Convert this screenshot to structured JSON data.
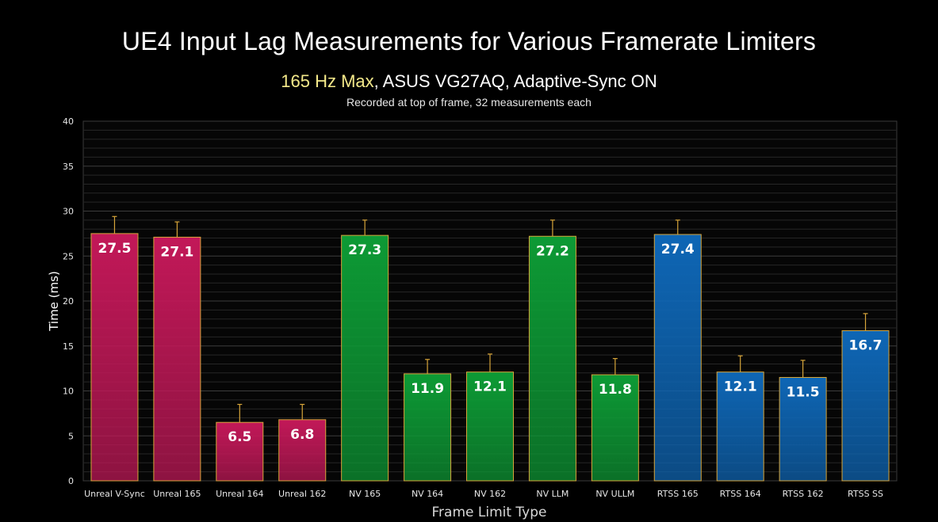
{
  "chart_data": {
    "type": "bar",
    "title": "UE4 Input Lag Measurements for Various Framerate Limiters",
    "subtitle_highlight": "165 Hz Max",
    "subtitle_rest": ", ASUS VG27AQ, Adaptive-Sync ON",
    "note": "Recorded at top of frame, 32 measurements each",
    "xlabel": "Frame Limit Type",
    "ylabel": "Time (ms)",
    "ylim": [
      0,
      40
    ],
    "yticks": [
      0,
      5,
      10,
      15,
      20,
      25,
      30,
      35,
      40
    ],
    "grid": true,
    "categories": [
      "Unreal V-Sync",
      "Unreal 165",
      "Unreal 164",
      "Unreal 162",
      "NV 165",
      "NV 164",
      "NV 162",
      "NV LLM",
      "NV ULLM",
      "RTSS 165",
      "RTSS 164",
      "RTSS 162",
      "RTSS SS"
    ],
    "values": [
      27.5,
      27.1,
      6.5,
      6.8,
      27.3,
      11.9,
      12.1,
      27.2,
      11.8,
      27.4,
      12.1,
      11.5,
      16.7
    ],
    "errors": [
      1.9,
      1.7,
      2.0,
      1.7,
      1.7,
      1.6,
      2.0,
      1.8,
      1.8,
      1.6,
      1.8,
      1.9,
      1.9
    ],
    "groups": [
      {
        "name": "Unreal",
        "color": "#c21858",
        "count": 4
      },
      {
        "name": "NV",
        "color": "#0d9a35",
        "count": 5
      },
      {
        "name": "RTSS",
        "color": "#0e66b5",
        "count": 4
      }
    ],
    "error_bar_color": "#d7a53a",
    "bar_border_color": "#d7a53a"
  }
}
